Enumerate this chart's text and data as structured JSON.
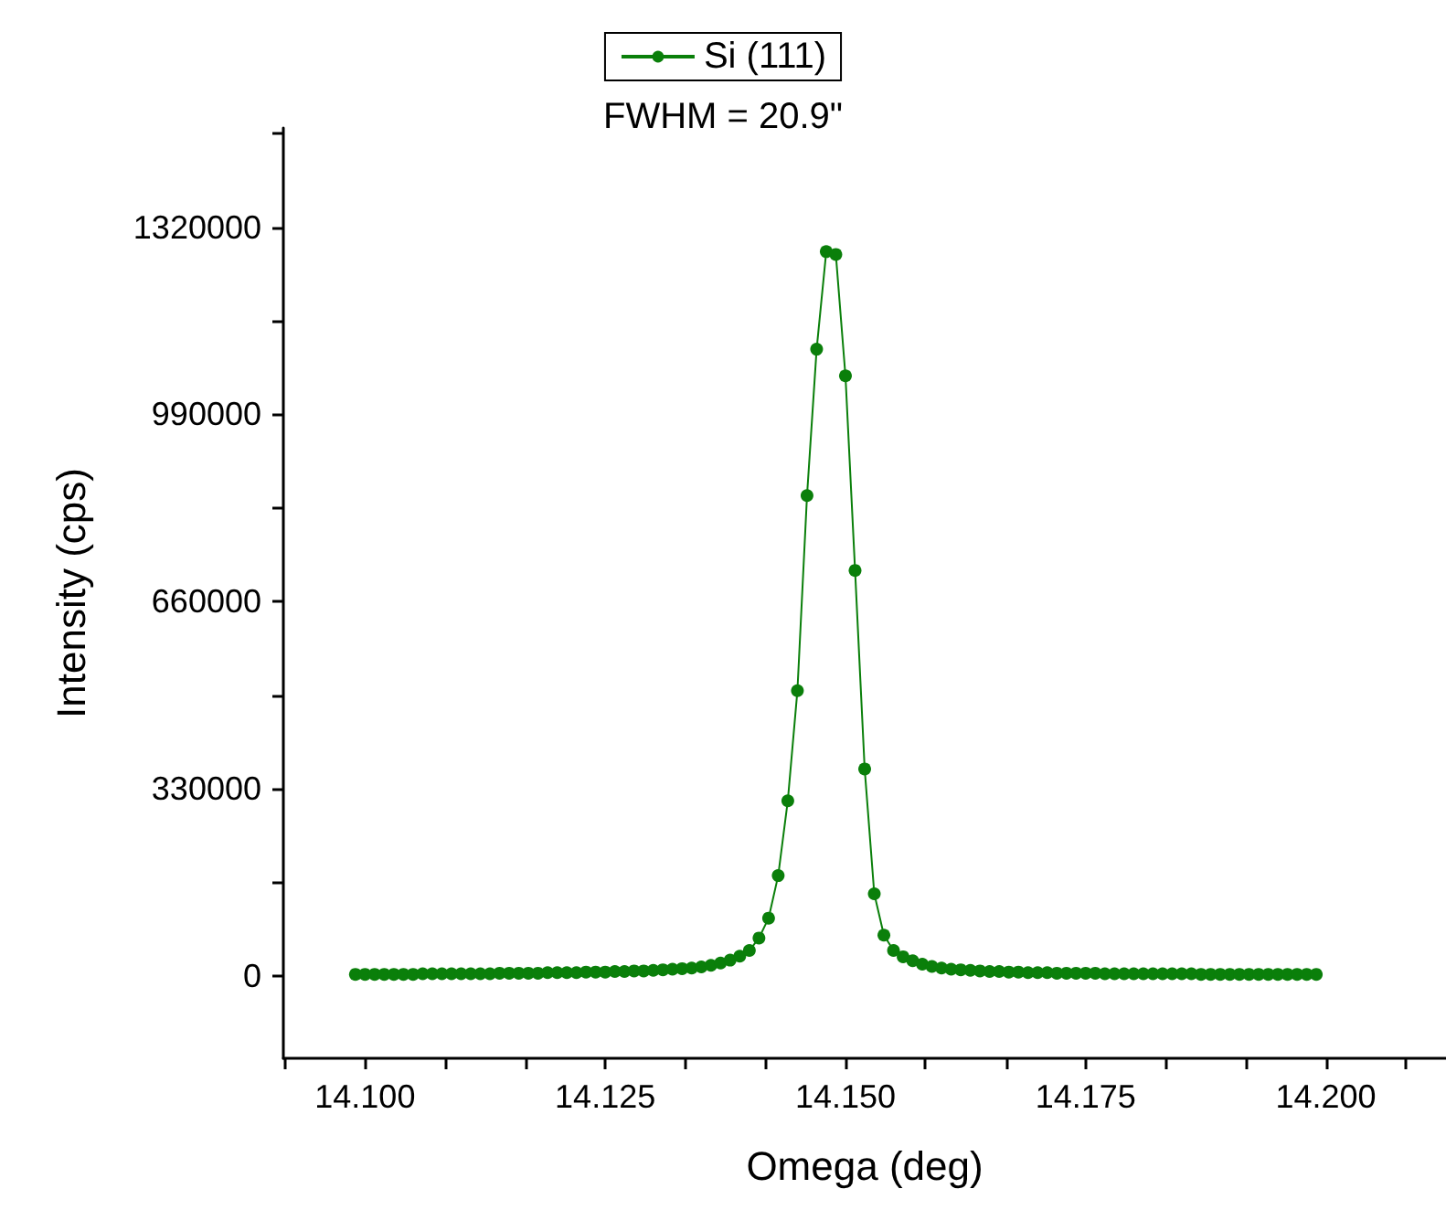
{
  "chart_data": {
    "type": "line",
    "xlabel": "Omega (deg)",
    "ylabel": "Intensity (cps)",
    "annotations": [
      "FWHM = 20.9\""
    ],
    "legend": "top",
    "grid": false,
    "marker": "circle",
    "line_style": "solid",
    "xlim": [
      14.0915,
      14.2125
    ],
    "ylim": [
      -145000,
      1495000
    ],
    "xticks": [
      {
        "value": 14.0917,
        "label": null
      },
      {
        "value": 14.1,
        "label": "14.100"
      },
      {
        "value": 14.1083,
        "label": null
      },
      {
        "value": 14.1167,
        "label": null
      },
      {
        "value": 14.125,
        "label": "14.125"
      },
      {
        "value": 14.1333,
        "label": null
      },
      {
        "value": 14.1417,
        "label": null
      },
      {
        "value": 14.15,
        "label": "14.150"
      },
      {
        "value": 14.1583,
        "label": null
      },
      {
        "value": 14.1667,
        "label": null
      },
      {
        "value": 14.175,
        "label": "14.175"
      },
      {
        "value": 14.1833,
        "label": null
      },
      {
        "value": 14.1917,
        "label": null
      },
      {
        "value": 14.2,
        "label": "14.200"
      },
      {
        "value": 14.2083,
        "label": null
      }
    ],
    "yticks": [
      0,
      {
        "value": 165000,
        "label": null
      },
      330000,
      {
        "value": 495000,
        "label": null
      },
      660000,
      {
        "value": 825000,
        "label": null
      },
      990000,
      {
        "value": 1155000,
        "label": null
      },
      1320000,
      {
        "value": 1485000,
        "label": null
      }
    ],
    "x": [
      14.099,
      14.1,
      14.101,
      14.102,
      14.103,
      14.104,
      14.105,
      14.106,
      14.107,
      14.108,
      14.109,
      14.11,
      14.111,
      14.112,
      14.113,
      14.114,
      14.115,
      14.116,
      14.117,
      14.118,
      14.119,
      14.12,
      14.121,
      14.122,
      14.123,
      14.124,
      14.125,
      14.126,
      14.127,
      14.128,
      14.129,
      14.13,
      14.131,
      14.132,
      14.133,
      14.134,
      14.135,
      14.136,
      14.137,
      14.138,
      14.139,
      14.14,
      14.141,
      14.142,
      14.143,
      14.144,
      14.145,
      14.146,
      14.147,
      14.148,
      14.149,
      14.15,
      14.151,
      14.152,
      14.153,
      14.154,
      14.155,
      14.156,
      14.157,
      14.158,
      14.159,
      14.16,
      14.161,
      14.162,
      14.163,
      14.164,
      14.165,
      14.166,
      14.167,
      14.168,
      14.169,
      14.17,
      14.171,
      14.172,
      14.173,
      14.174,
      14.175,
      14.176,
      14.177,
      14.178,
      14.179,
      14.18,
      14.181,
      14.182,
      14.183,
      14.184,
      14.185,
      14.186,
      14.187,
      14.188,
      14.189,
      14.19,
      14.191,
      14.192,
      14.193,
      14.194,
      14.195,
      14.196,
      14.197,
      14.198,
      14.199
    ],
    "series": [
      {
        "name": "Si (111)",
        "color": "#0a7f0a",
        "values": [
          3000,
          3000,
          3000,
          3000,
          3000,
          3000,
          3000,
          4000,
          4000,
          4000,
          4000,
          4000,
          4000,
          4000,
          4000,
          5000,
          5000,
          5000,
          5000,
          5000,
          6000,
          6000,
          6000,
          6000,
          7000,
          7000,
          7000,
          8000,
          8000,
          9000,
          9000,
          10000,
          11000,
          12000,
          13000,
          14000,
          16000,
          19000,
          23000,
          28000,
          35000,
          45000,
          67000,
          102000,
          177000,
          309000,
          503000,
          847000,
          1105000,
          1277000,
          1272000,
          1058000,
          715000,
          365000,
          145000,
          72000,
          45000,
          34000,
          27000,
          21000,
          17000,
          14000,
          12000,
          11000,
          10000,
          9000,
          8000,
          8000,
          7000,
          7000,
          6000,
          6000,
          6000,
          5000,
          5000,
          5000,
          5000,
          5000,
          4000,
          4000,
          4000,
          4000,
          4000,
          4000,
          4000,
          4000,
          4000,
          4000,
          3000,
          3000,
          3000,
          3000,
          3000,
          3000,
          3000,
          3000,
          3000,
          3000,
          3000,
          3000,
          3000
        ]
      }
    ]
  }
}
